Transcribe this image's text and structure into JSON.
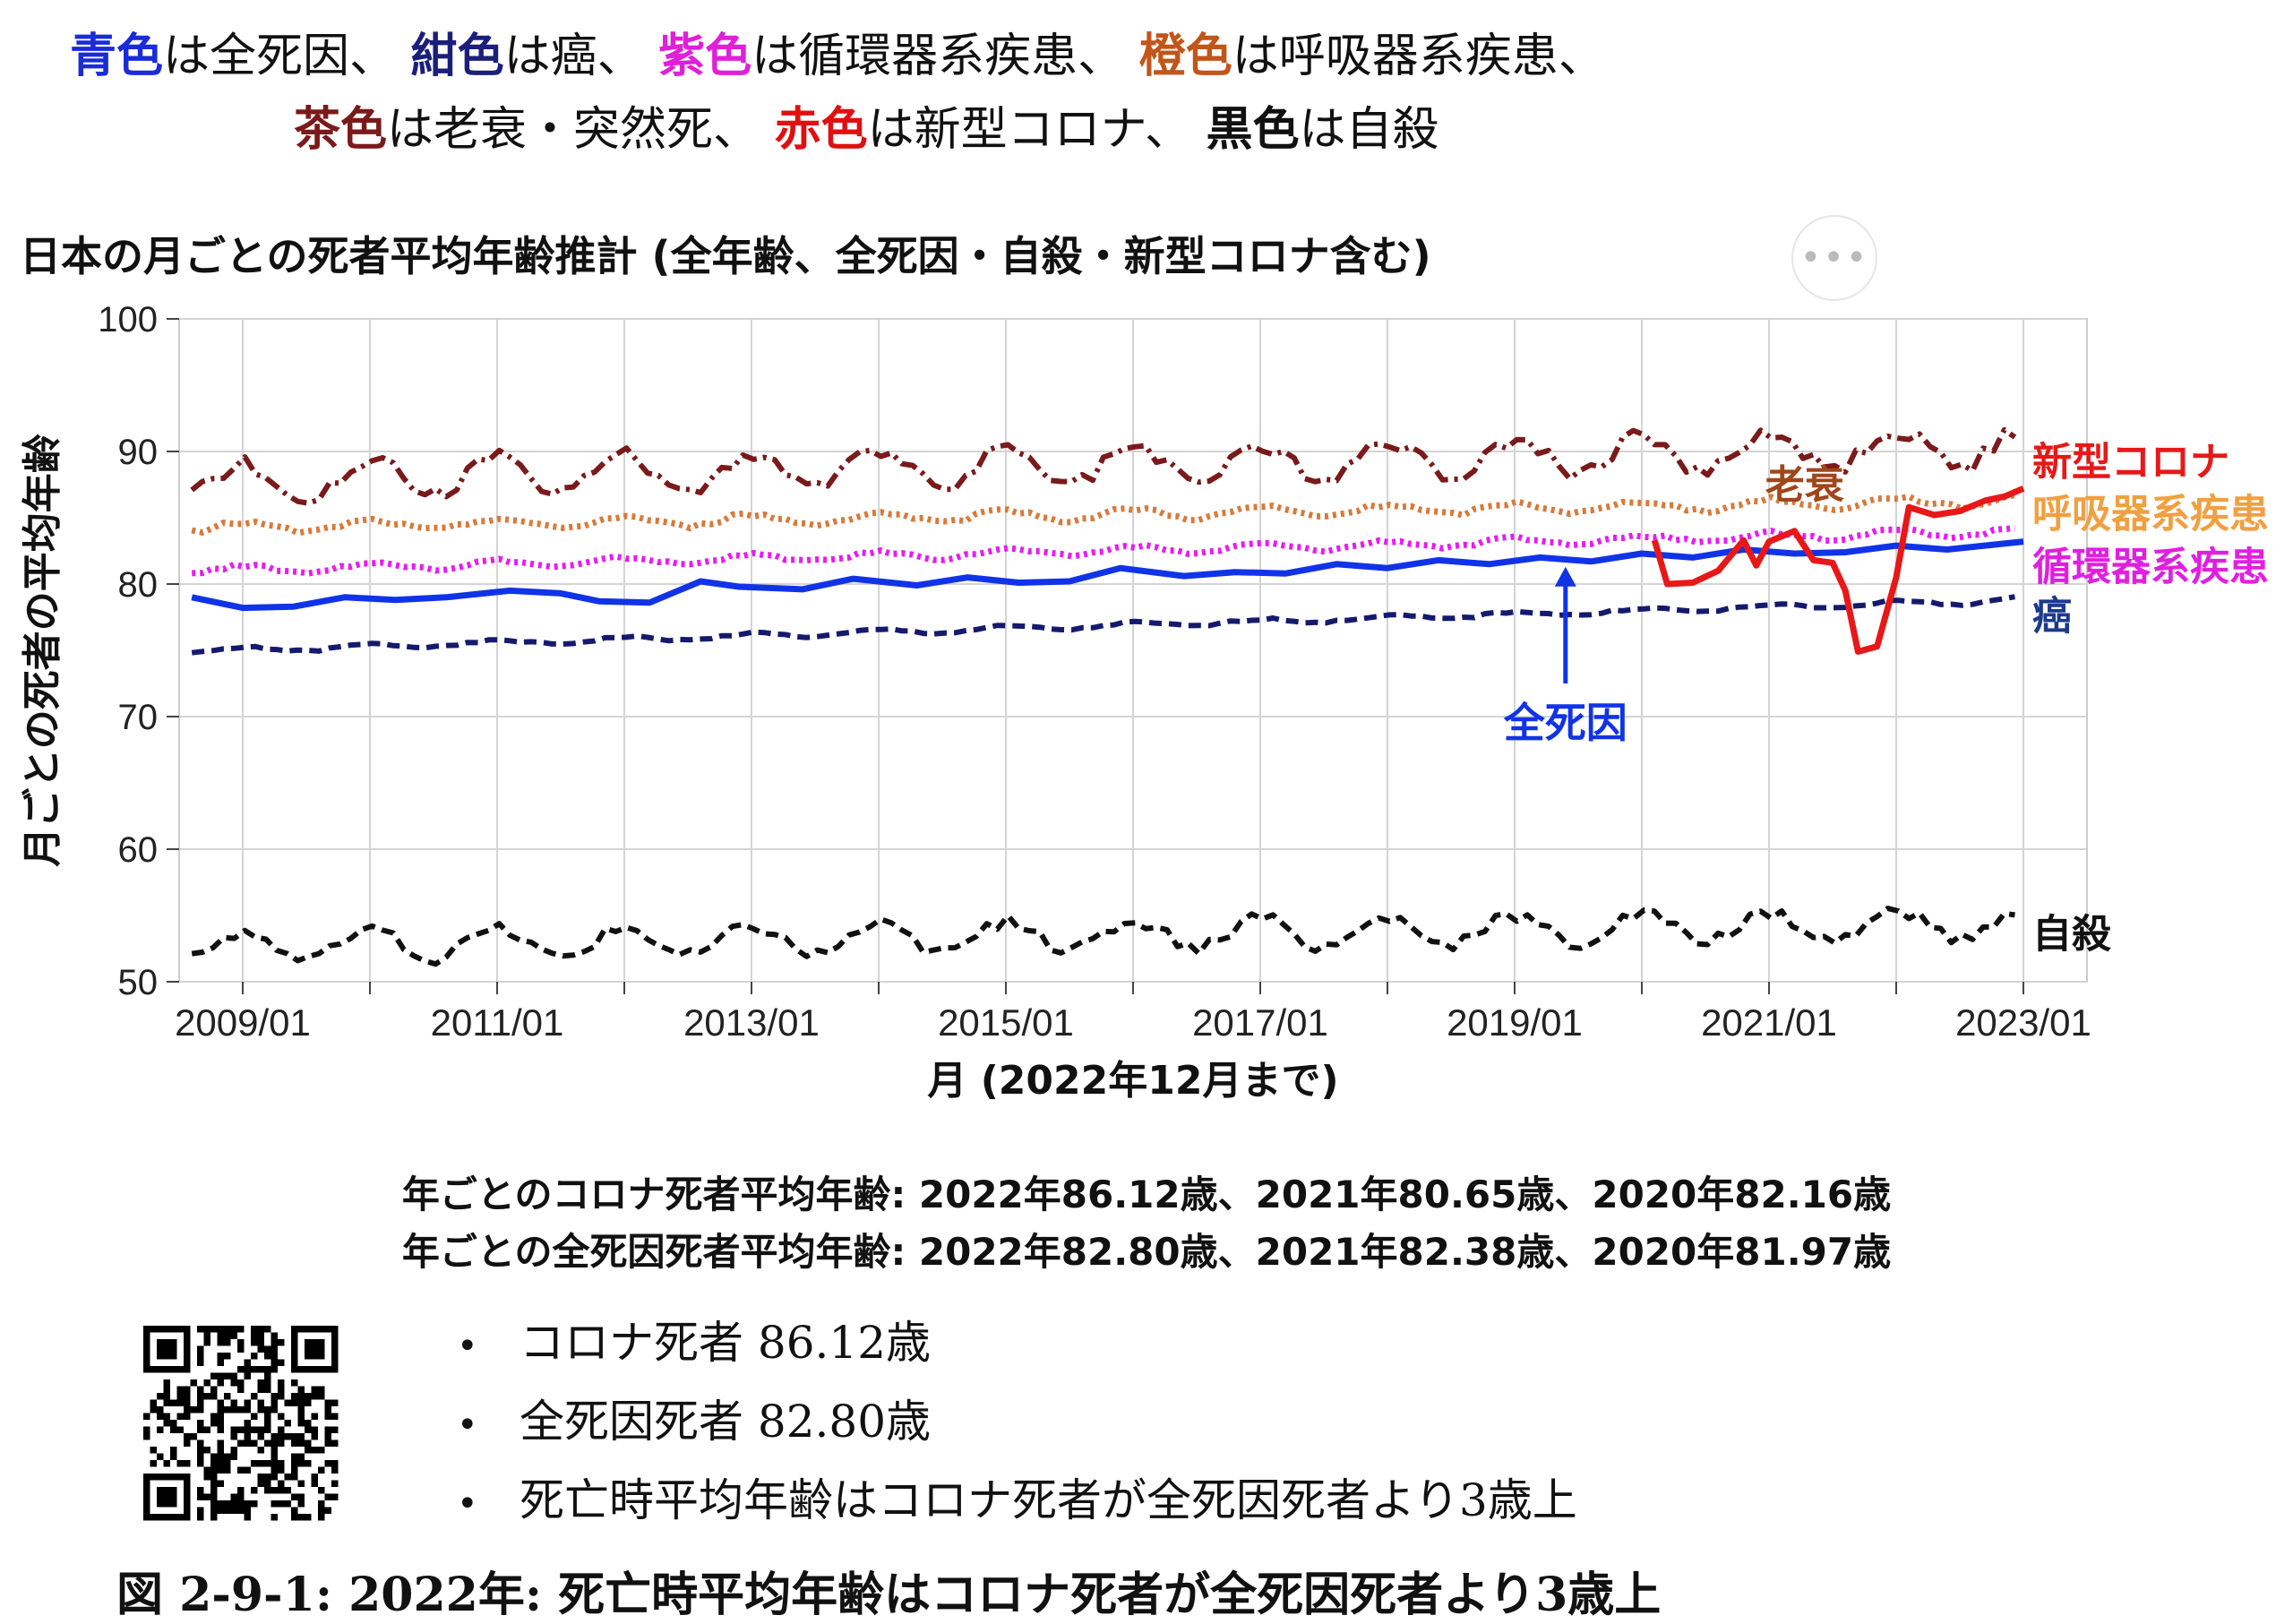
{
  "legend": {
    "line1": [
      {
        "color_word": "青色",
        "color": "#1a2bd8",
        "rest": "は全死因、"
      },
      {
        "color_word": "紺色",
        "color": "#1c1f7a",
        "rest": "は癌、"
      },
      {
        "color_word": "紫色",
        "color": "#e020d8",
        "rest": "は循環器系疾患、"
      },
      {
        "color_word": "橙色",
        "color": "#c2561a",
        "rest": "は呼吸器系疾患、"
      }
    ],
    "line2": [
      {
        "color_word": "茶色",
        "color": "#7a1a1a",
        "rest": "は老衰・突然死、"
      },
      {
        "color_word": "赤色",
        "color": "#e01010",
        "rest": "は新型コロナ、"
      },
      {
        "color_word": "黒色",
        "color": "#111111",
        "rest": "は自殺"
      }
    ]
  },
  "menu_icon": "ellipsis-icon",
  "menu_label": "•••",
  "chart_data": {
    "type": "line",
    "title": "日本の月ごとの死者平均年齢推計 (全年齢、全死因・自殺・新型コロナ含む)",
    "xlabel": "月 (2022年12月まで)",
    "ylabel": "月ごとの死者の平均年齢",
    "ylim": [
      50,
      100
    ],
    "xlim": [
      "2008-07",
      "2023-07"
    ],
    "yticks": [
      "50",
      "60",
      "70",
      "80",
      "90",
      "100"
    ],
    "xticks": [
      "2009/01",
      "2011/01",
      "2013/01",
      "2015/01",
      "2017/01",
      "2019/01",
      "2021/01",
      "2023/01"
    ],
    "grid": true,
    "series": [
      {
        "name": "老衰",
        "color": "#7a1a1a",
        "label_color": "#a0461a",
        "style": "dashdot",
        "trend": [
          [
            2008.6,
            87.7
          ],
          [
            2023.0,
            90.3
          ]
        ],
        "amp": 1.4,
        "period": 1
      },
      {
        "name": "呼吸器系疾患",
        "color": "#d87a3a",
        "label_color": "#f0a040",
        "style": "dotted",
        "trend": [
          [
            2008.6,
            84.2
          ],
          [
            2023.0,
            86.3
          ]
        ],
        "amp": 0.4,
        "period": 1
      },
      {
        "name": "循環器系疾患",
        "color": "#e81cf0",
        "label_color": "#e020e0",
        "style": "dotted",
        "trend": [
          [
            2008.6,
            81.0
          ],
          [
            2023.0,
            84.0
          ]
        ],
        "amp": 0.3,
        "period": 1
      },
      {
        "name": "全死因",
        "color": "#1133e8",
        "label_color": "#1133e8",
        "style": "solid",
        "points": [
          [
            2008.6,
            79.0
          ],
          [
            2009.0,
            78.2
          ],
          [
            2009.4,
            78.3
          ],
          [
            2009.8,
            79.0
          ],
          [
            2010.2,
            78.8
          ],
          [
            2010.6,
            79.0
          ],
          [
            2011.1,
            79.5
          ],
          [
            2011.5,
            79.3
          ],
          [
            2011.8,
            78.7
          ],
          [
            2012.2,
            78.6
          ],
          [
            2012.6,
            80.2
          ],
          [
            2012.9,
            79.8
          ],
          [
            2013.4,
            79.6
          ],
          [
            2013.8,
            80.4
          ],
          [
            2014.3,
            79.9
          ],
          [
            2014.7,
            80.5
          ],
          [
            2015.1,
            80.1
          ],
          [
            2015.5,
            80.2
          ],
          [
            2015.9,
            81.2
          ],
          [
            2016.4,
            80.6
          ],
          [
            2016.8,
            80.9
          ],
          [
            2017.2,
            80.8
          ],
          [
            2017.6,
            81.5
          ],
          [
            2018.0,
            81.2
          ],
          [
            2018.4,
            81.8
          ],
          [
            2018.8,
            81.5
          ],
          [
            2019.2,
            82.0
          ],
          [
            2019.6,
            81.7
          ],
          [
            2020.0,
            82.3
          ],
          [
            2020.4,
            82.0
          ],
          [
            2020.8,
            82.6
          ],
          [
            2021.2,
            82.3
          ],
          [
            2021.6,
            82.4
          ],
          [
            2022.0,
            82.9
          ],
          [
            2022.4,
            82.6
          ],
          [
            2023.0,
            83.2
          ]
        ]
      },
      {
        "name": "癌",
        "color": "#151a6e",
        "label_color": "#1c3a8c",
        "style": "dashed",
        "trend": [
          [
            2008.6,
            74.9
          ],
          [
            2023.0,
            78.8
          ]
        ],
        "amp": 0.2,
        "period": 1
      },
      {
        "name": "新型コロナ",
        "color": "#e81818",
        "label_color": "#e81818",
        "style": "solid",
        "points": [
          [
            2020.1,
            83.3
          ],
          [
            2020.2,
            80.0
          ],
          [
            2020.4,
            80.1
          ],
          [
            2020.6,
            81.0
          ],
          [
            2020.8,
            83.3
          ],
          [
            2020.9,
            81.4
          ],
          [
            2021.0,
            83.2
          ],
          [
            2021.2,
            84.0
          ],
          [
            2021.35,
            81.8
          ],
          [
            2021.5,
            81.6
          ],
          [
            2021.6,
            79.5
          ],
          [
            2021.7,
            74.9
          ],
          [
            2021.85,
            75.3
          ],
          [
            2022.0,
            80.5
          ],
          [
            2022.1,
            85.8
          ],
          [
            2022.3,
            85.2
          ],
          [
            2022.5,
            85.5
          ],
          [
            2022.7,
            86.3
          ],
          [
            2022.85,
            86.6
          ],
          [
            2023.0,
            87.2
          ]
        ]
      },
      {
        "name": "自殺",
        "color": "#111111",
        "label_color": "#111111",
        "style": "dashed",
        "trend": [
          [
            2008.6,
            52.6
          ],
          [
            2023.0,
            54.4
          ]
        ],
        "amp": 1.1,
        "period": 1
      }
    ],
    "annotation": {
      "text": "全死因",
      "color": "#1133e8",
      "x": 2019.4,
      "arrow_from_y": 72.5,
      "arrow_to_y": 81.3
    }
  },
  "stats": {
    "line1": "年ごとのコロナ死者平均年齢: 2022年86.12歳、2021年80.65歳、2020年82.16歳",
    "line2": "年ごとの全死因死者平均年齢: 2022年82.80歳、2021年82.38歳、2020年81.97歳"
  },
  "qr_icon": "qr-code-icon",
  "bullets": [
    "コロナ死者 86.12歳",
    "全死因死者 82.80歳",
    "死亡時平均年齢はコロナ死者が全死因死者より3歳上"
  ],
  "caption": "図 2-9-1: 2022年: 死亡時平均年齢はコロナ死者が全死因死者より3歳上"
}
